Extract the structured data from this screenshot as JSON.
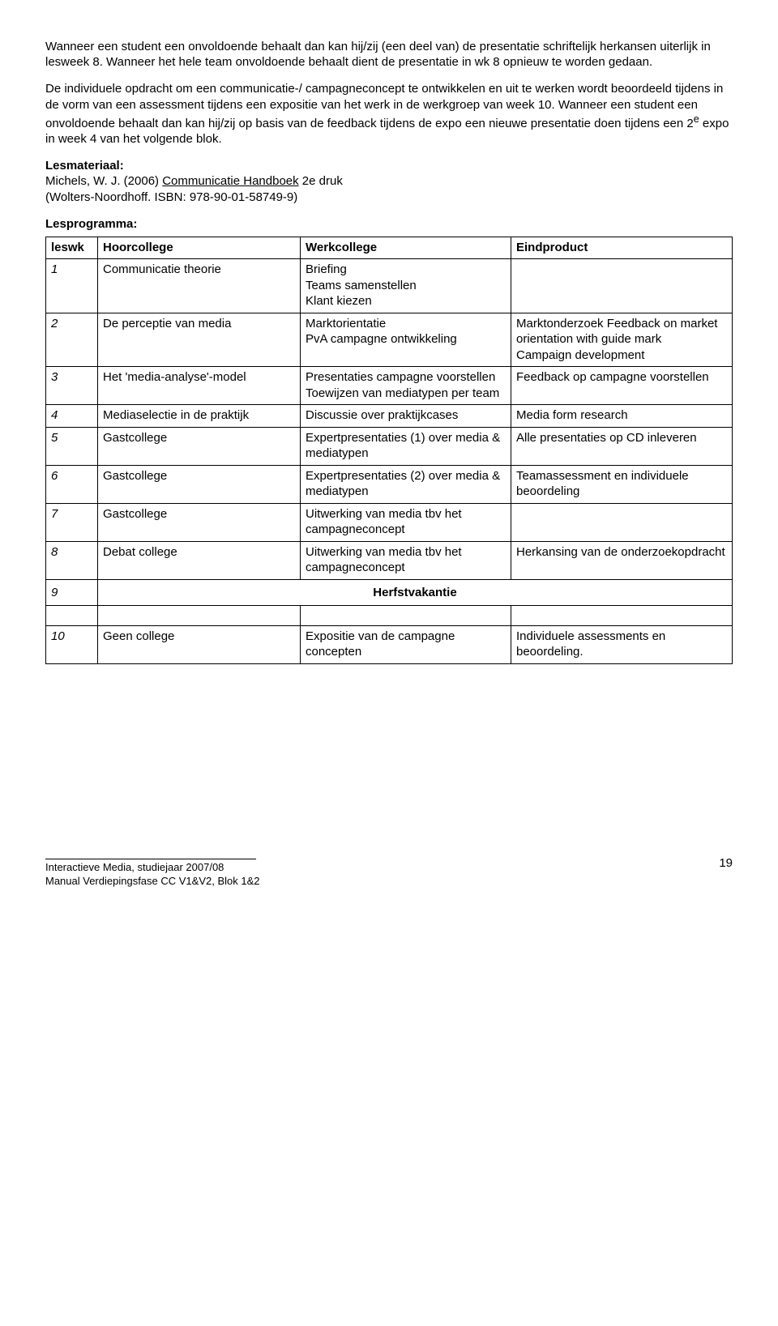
{
  "para1": "Wanneer een student een onvoldoende behaalt dan kan hij/zij (een deel van) de presentatie schriftelijk herkansen uiterlijk in lesweek 8. Wanneer het hele team onvoldoende behaalt dient de presentatie in wk 8 opnieuw te worden gedaan.",
  "para2a": "De individuele opdracht om een communicatie-/ campagneconcept te ontwikkelen en uit te werken wordt beoordeeld tijdens in de vorm van een assessment tijdens een expositie van het werk in de werkgroep van week 10. Wanneer een student een onvoldoende behaalt dan kan hij/zij op basis van de feedback tijdens de expo een nieuwe presentatie doen tijdens een 2",
  "para2sup": "e",
  "para2b": " expo in week 4 van het volgende blok.",
  "lesmateriaal_label": "Lesmateriaal:",
  "lesmateriaal_line1a": "Michels, W. J. (2006) ",
  "lesmateriaal_line1b": "Communicatie Handboek",
  "lesmateriaal_line1c": " 2e druk",
  "lesmateriaal_line2": "(Wolters-Noordhoff. ISBN: 978-90-01-58749-9)",
  "lesprogramma_label": "Lesprogramma:",
  "headers": [
    "leswk",
    "Hoorcollege",
    "Werkcollege",
    "Eindproduct"
  ],
  "rows": [
    {
      "n": "1",
      "hc": "Communicatie theorie",
      "wc": "Briefing\nTeams samenstellen\nKlant kiezen",
      "ep": ""
    },
    {
      "n": "2",
      "hc": "De perceptie van media",
      "wc": "Marktorientatie\nPvA campagne ontwikkeling",
      "ep": "Marktonderzoek Feedback on market orientation with guide mark\nCampaign development"
    },
    {
      "n": "3",
      "hc": "Het 'media-analyse'-model",
      "wc": "Presentaties campagne voorstellen\nToewijzen van mediatypen per team",
      "ep": "Feedback op campagne voorstellen"
    },
    {
      "n": "4",
      "hc": "Mediaselectie in de praktijk",
      "wc": "Discussie over praktijkcases",
      "ep": "Media form research"
    },
    {
      "n": "5",
      "hc": "Gastcollege",
      "wc": "Expertpresentaties (1) over media & mediatypen",
      "ep": "Alle presentaties op CD inleveren"
    },
    {
      "n": "6",
      "hc": "Gastcollege",
      "wc": "Expertpresentaties (2) over media & mediatypen",
      "ep": "Teamassessment en individuele beoordeling"
    },
    {
      "n": "7",
      "hc": "Gastcollege",
      "wc": "Uitwerking van media tbv het campagneconcept",
      "ep": ""
    },
    {
      "n": "8",
      "hc": "Debat college",
      "wc": "Uitwerking van media tbv het campagneconcept",
      "ep": "Herkansing van de onderzoekopdracht"
    }
  ],
  "herfst_n": "9",
  "herfst_label": "Herfstvakantie",
  "row10": {
    "n": "10",
    "hc": "Geen college",
    "wc": "Expositie van de campagne concepten",
    "ep": "Individuele assessments en beoordeling."
  },
  "footer1": "Interactieve Media, studiejaar 2007/08",
  "footer2": "Manual Verdiepingsfase CC V1&V2, Blok 1&2",
  "pagenum": "19"
}
